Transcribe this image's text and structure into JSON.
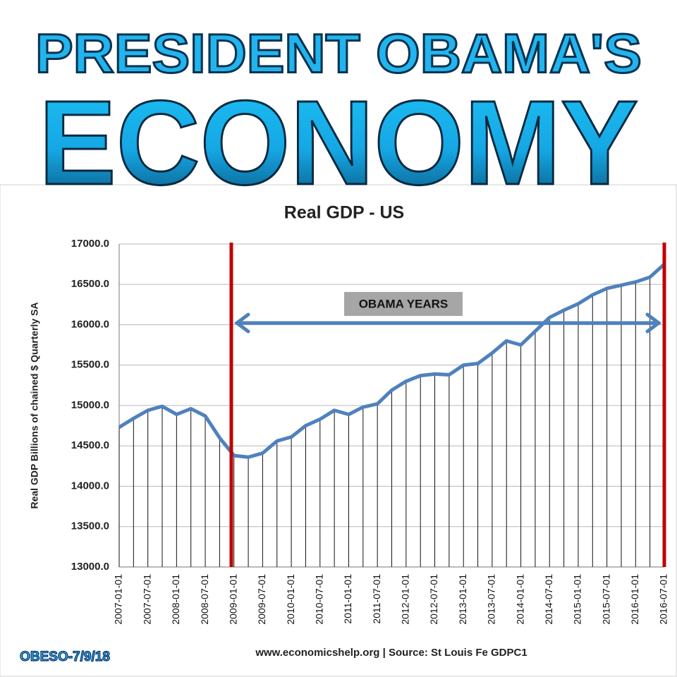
{
  "header": {
    "line1": "PRESIDENT OBAMA'S",
    "line2": "ECONOMY"
  },
  "signature": "OBESO-7/9/18",
  "chart_data": {
    "type": "line",
    "title": "Real GDP - US",
    "y_label": "Real GDP  Billions of chained $ Quarterly SA",
    "source": "www.economicshelp.org | Source: St Louis Fe GDPC1",
    "annotation": "OBAMA YEARS",
    "categories": [
      "2007-01-01",
      null,
      "2007-07-01",
      null,
      "2008-01-01",
      null,
      "2008-07-01",
      null,
      "2009-01-01",
      null,
      "2009-07-01",
      null,
      "2010-01-01",
      null,
      "2010-07-01",
      null,
      "2011-01-01",
      null,
      "2011-07-01",
      null,
      "2012-01-01",
      null,
      "2012-07-01",
      null,
      "2013-01-01",
      null,
      "2013-07-01",
      null,
      "2014-01-01",
      null,
      "2014-07-01",
      null,
      "2015-01-01",
      null,
      "2015-07-01",
      null,
      "2016-01-01",
      null,
      "2016-07-01"
    ],
    "series": [
      {
        "name": "Real GDP",
        "color": "#4f81bd",
        "values": [
          14730,
          14840,
          14940,
          14990,
          14890,
          14960,
          14870,
          14600,
          14380,
          14360,
          14410,
          14560,
          14610,
          14750,
          14830,
          14940,
          14890,
          14980,
          15020,
          15190,
          15300,
          15370,
          15390,
          15380,
          15500,
          15520,
          15650,
          15800,
          15750,
          15920,
          16090,
          16180,
          16260,
          16370,
          16450,
          16490,
          16530,
          16590,
          16750
        ]
      }
    ],
    "ylim": [
      13000,
      17000
    ],
    "yticks": [
      {
        "value": 13000,
        "label": "13000.0"
      },
      {
        "value": 13500,
        "label": "13500.0"
      },
      {
        "value": 14000,
        "label": "14000.0"
      },
      {
        "value": 14500,
        "label": "14500.0"
      },
      {
        "value": 15000,
        "label": "15000.0"
      },
      {
        "value": 15500,
        "label": "15500.0"
      },
      {
        "value": 16000,
        "label": "16000.0"
      },
      {
        "value": 16500,
        "label": "16500.0"
      },
      {
        "value": 17000,
        "label": "17000.0"
      }
    ],
    "grid": true,
    "drop_lines": true
  }
}
